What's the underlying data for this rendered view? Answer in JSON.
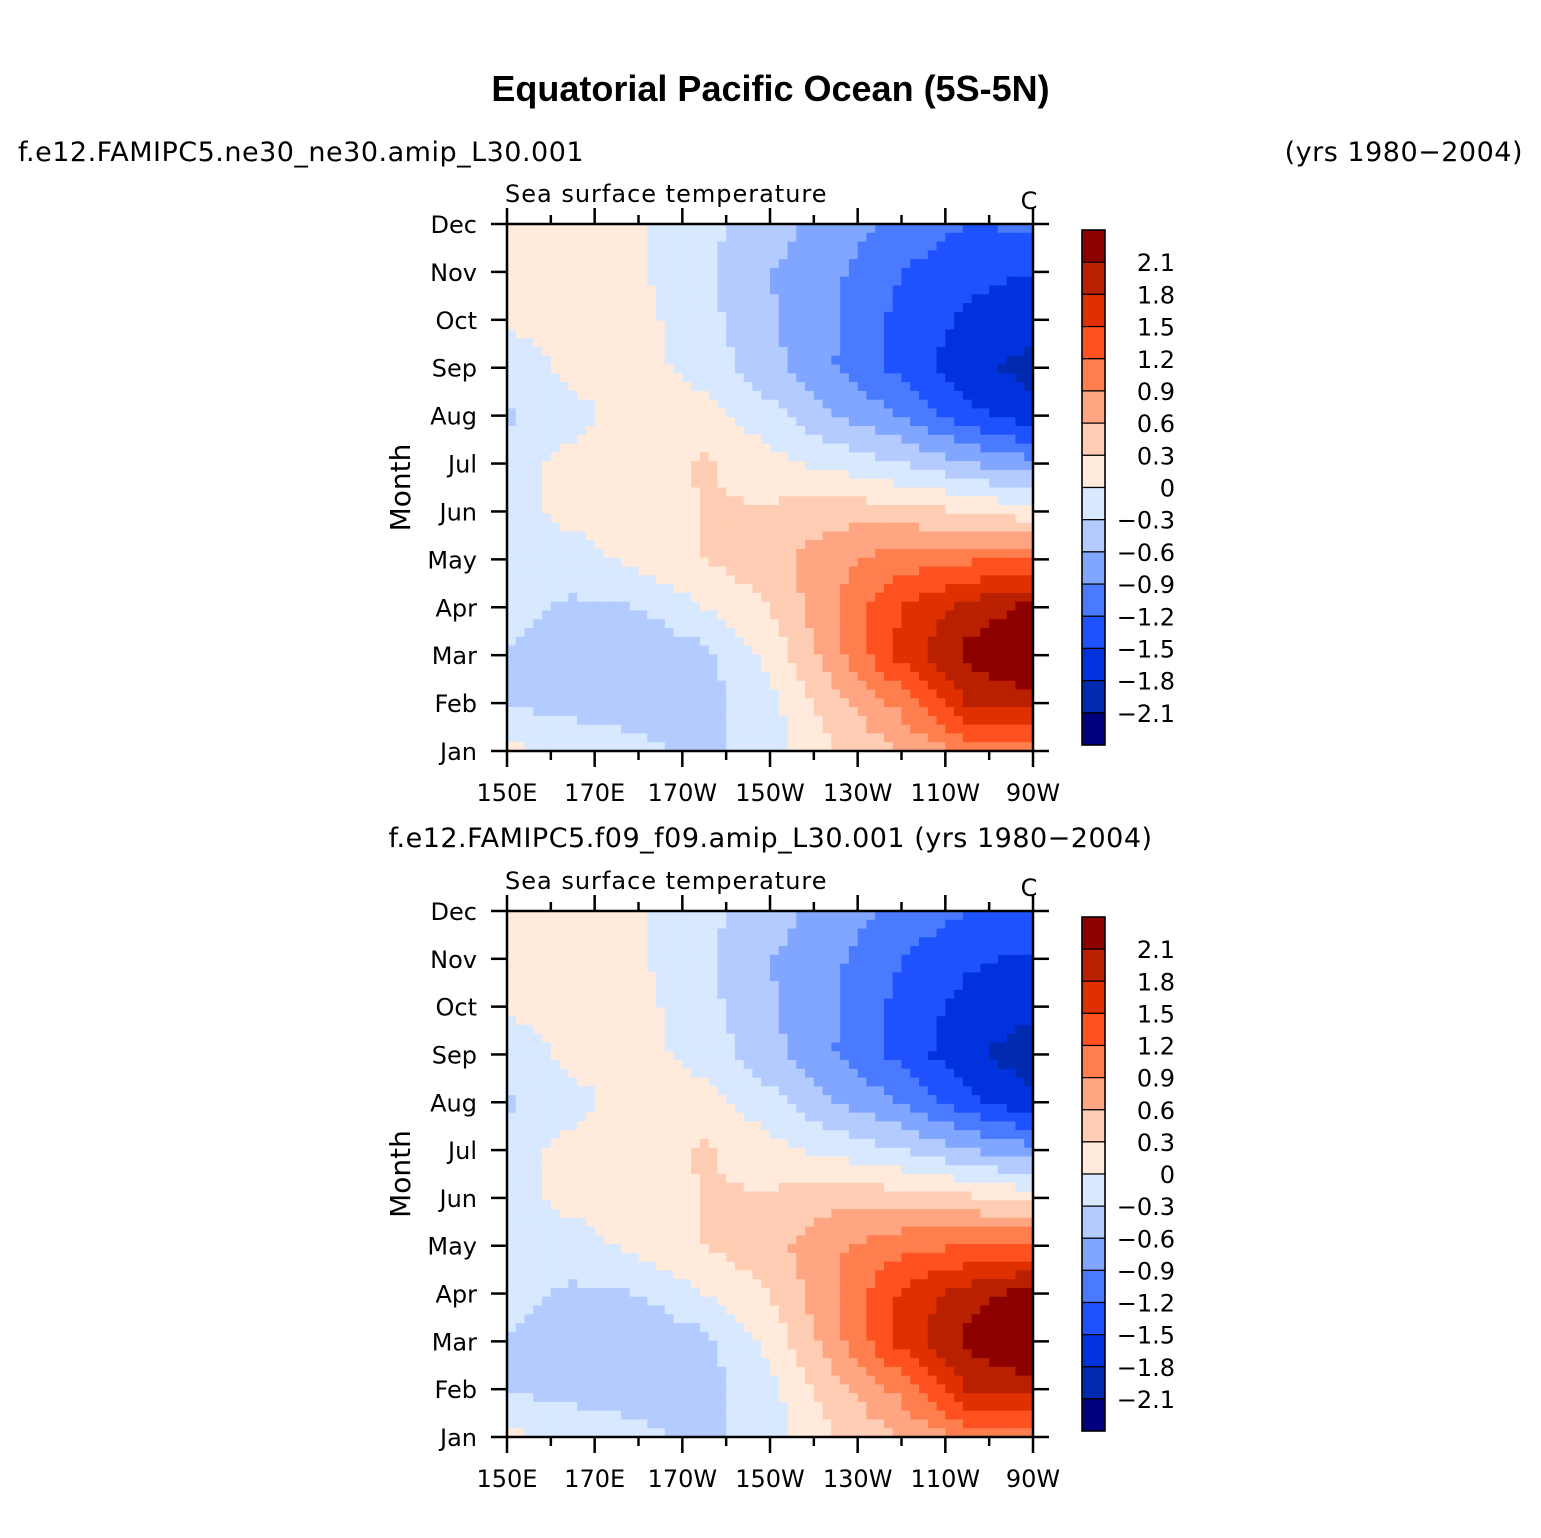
{
  "title": "Equatorial Pacific Ocean (5S-5N)",
  "header": {
    "case_1": "f.e12.FAMIPC5.ne30_ne30.amip_L30.001",
    "years_1": "(yrs 1980−2004)",
    "caption_2": "f.e12.FAMIPC5.f09_f09.amip_L30.001 (yrs 1980−2004)"
  },
  "chart_data": [
    {
      "type": "heatmap",
      "title": "Sea surface temperature",
      "units": "C",
      "ylabel": "Month",
      "x_categories": [
        "150E",
        "170E",
        "170W",
        "150W",
        "130W",
        "110W",
        "90W"
      ],
      "y_categories": [
        "Jan",
        "Feb",
        "Mar",
        "Apr",
        "May",
        "Jun",
        "Jul",
        "Aug",
        "Sep",
        "Oct",
        "Nov",
        "Dec"
      ],
      "z": [
        [
          0.05,
          0.0,
          -0.2,
          -0.4,
          -0.15,
          0.3,
          0.6,
          1.0,
          0.9
        ],
        [
          -0.3,
          -0.45,
          -0.5,
          -0.4,
          -0.1,
          0.5,
          1.0,
          1.8,
          2.0
        ],
        [
          -0.3,
          -0.5,
          -0.55,
          -0.4,
          0.1,
          0.8,
          1.6,
          2.2,
          2.4
        ],
        [
          -0.2,
          -0.35,
          -0.3,
          0.0,
          0.3,
          0.9,
          1.5,
          1.9,
          2.2
        ],
        [
          -0.15,
          -0.15,
          0.1,
          0.3,
          0.5,
          0.8,
          1.05,
          1.15,
          1.2
        ],
        [
          -0.1,
          0.1,
          0.15,
          0.3,
          0.35,
          0.5,
          0.4,
          0.3,
          0.1
        ],
        [
          -0.15,
          0.1,
          0.15,
          0.35,
          0.1,
          -0.1,
          -0.3,
          -0.6,
          -0.8
        ],
        [
          -0.35,
          -0.1,
          0.15,
          0.1,
          -0.2,
          -0.6,
          -0.9,
          -1.4,
          -1.7
        ],
        [
          -0.2,
          0.1,
          0.1,
          -0.1,
          -0.5,
          -0.9,
          -1.3,
          -1.7,
          -1.9
        ],
        [
          0.05,
          0.1,
          0.1,
          -0.2,
          -0.55,
          -0.9,
          -1.3,
          -1.55,
          -1.7
        ],
        [
          0.1,
          0.1,
          0.05,
          -0.25,
          -0.6,
          -0.85,
          -1.2,
          -1.4,
          -1.5
        ],
        [
          0.15,
          0.1,
          0.05,
          -0.2,
          -0.45,
          -0.75,
          -1.0,
          -1.2,
          -1.15
        ]
      ],
      "z_range": [
        -2.4,
        2.4
      ],
      "levels": [
        -2.1,
        -1.8,
        -1.5,
        -1.2,
        -0.9,
        -0.6,
        -0.3,
        0,
        0.3,
        0.6,
        0.9,
        1.2,
        1.5,
        1.8,
        2.1
      ],
      "level_labels": [
        "2.1",
        "1.8",
        "1.5",
        "1.2",
        "0.9",
        "0.6",
        "0.3",
        "0",
        "−0.3",
        "−0.6",
        "−0.9",
        "−1.2",
        "−1.5",
        "−1.8",
        "−2.1"
      ],
      "colors": [
        "#00007f",
        "#002ab0",
        "#0033dd",
        "#1f52ff",
        "#4a7aff",
        "#80a6ff",
        "#b4cbff",
        "#d7e8ff",
        "#ffeadb",
        "#ffcdb3",
        "#ffa582",
        "#ff7e4d",
        "#ff5020",
        "#e03000",
        "#b82000",
        "#8c0000"
      ]
    },
    {
      "type": "heatmap",
      "title": "Sea surface temperature",
      "units": "C",
      "ylabel": "Month",
      "x_categories": [
        "150E",
        "170E",
        "170W",
        "150W",
        "130W",
        "110W",
        "90W"
      ],
      "y_categories": [
        "Jan",
        "Feb",
        "Mar",
        "Apr",
        "May",
        "Jun",
        "Jul",
        "Aug",
        "Sep",
        "Oct",
        "Nov",
        "Dec"
      ],
      "z": [
        [
          0.05,
          0.0,
          -0.2,
          -0.4,
          -0.15,
          0.3,
          0.6,
          1.0,
          0.9
        ],
        [
          -0.3,
          -0.45,
          -0.5,
          -0.4,
          -0.1,
          0.5,
          1.0,
          1.8,
          2.0
        ],
        [
          -0.3,
          -0.5,
          -0.55,
          -0.4,
          0.1,
          0.8,
          1.6,
          2.2,
          2.4
        ],
        [
          -0.2,
          -0.35,
          -0.3,
          0.0,
          0.3,
          0.9,
          1.55,
          1.95,
          2.25
        ],
        [
          -0.15,
          -0.15,
          0.1,
          0.3,
          0.5,
          0.85,
          1.1,
          1.2,
          1.25
        ],
        [
          -0.1,
          0.1,
          0.15,
          0.3,
          0.35,
          0.5,
          0.45,
          0.35,
          0.15
        ],
        [
          -0.15,
          0.1,
          0.15,
          0.35,
          0.1,
          -0.1,
          -0.3,
          -0.6,
          -0.8
        ],
        [
          -0.35,
          -0.1,
          0.15,
          0.1,
          -0.2,
          -0.6,
          -0.9,
          -1.4,
          -1.75
        ],
        [
          -0.2,
          0.1,
          0.1,
          -0.1,
          -0.5,
          -0.9,
          -1.3,
          -1.75,
          -1.95
        ],
        [
          0.05,
          0.1,
          0.1,
          -0.2,
          -0.55,
          -0.9,
          -1.3,
          -1.6,
          -1.75
        ],
        [
          0.1,
          0.1,
          0.05,
          -0.25,
          -0.6,
          -0.85,
          -1.2,
          -1.45,
          -1.55
        ],
        [
          0.15,
          0.1,
          0.05,
          -0.2,
          -0.45,
          -0.75,
          -1.0,
          -1.2,
          -1.2
        ]
      ],
      "z_range": [
        -2.4,
        2.4
      ],
      "levels": [
        -2.1,
        -1.8,
        -1.5,
        -1.2,
        -0.9,
        -0.6,
        -0.3,
        0,
        0.3,
        0.6,
        0.9,
        1.2,
        1.5,
        1.8,
        2.1
      ],
      "level_labels": [
        "2.1",
        "1.8",
        "1.5",
        "1.2",
        "0.9",
        "0.6",
        "0.3",
        "0",
        "−0.3",
        "−0.6",
        "−0.9",
        "−1.2",
        "−1.5",
        "−1.8",
        "−2.1"
      ],
      "colors": [
        "#00007f",
        "#002ab0",
        "#0033dd",
        "#1f52ff",
        "#4a7aff",
        "#80a6ff",
        "#b4cbff",
        "#d7e8ff",
        "#ffeadb",
        "#ffcdb3",
        "#ffa582",
        "#ff7e4d",
        "#ff5020",
        "#e03000",
        "#b82000",
        "#8c0000"
      ]
    }
  ]
}
